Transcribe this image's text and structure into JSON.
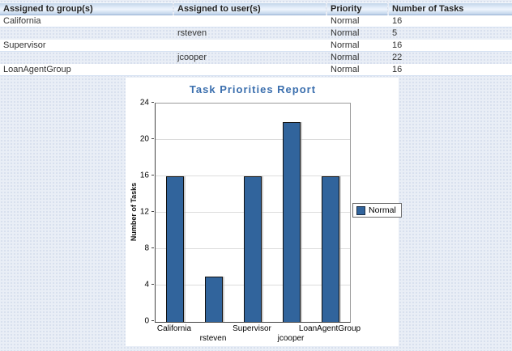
{
  "table": {
    "headers": [
      "Assigned to group(s)",
      "Assigned to user(s)",
      "Priority",
      "Number of Tasks"
    ],
    "rows": [
      {
        "group": "California",
        "user": "",
        "priority": "Normal",
        "tasks": "16"
      },
      {
        "group": "",
        "user": "rsteven",
        "priority": "Normal",
        "tasks": "5"
      },
      {
        "group": "Supervisor",
        "user": "",
        "priority": "Normal",
        "tasks": "16"
      },
      {
        "group": "",
        "user": "jcooper",
        "priority": "Normal",
        "tasks": "22"
      },
      {
        "group": "LoanAgentGroup",
        "user": "",
        "priority": "Normal",
        "tasks": "16"
      }
    ]
  },
  "chart_data": {
    "type": "bar",
    "title": "Task Priorities Report",
    "xlabel": "",
    "ylabel": "Number of Tasks",
    "categories": [
      "California",
      "rsteven",
      "Supervisor",
      "jcooper",
      "LoanAgentGroup"
    ],
    "series": [
      {
        "name": "Normal",
        "color": "#31649c",
        "values": [
          16,
          5,
          16,
          22,
          16
        ]
      }
    ],
    "ylim": [
      0,
      24
    ],
    "ytick_step": 4,
    "grid": true,
    "legend_position": "right"
  },
  "colors": {
    "title": "#3b6fae",
    "bar": "#31649c",
    "page_background": "#e9eef6"
  }
}
